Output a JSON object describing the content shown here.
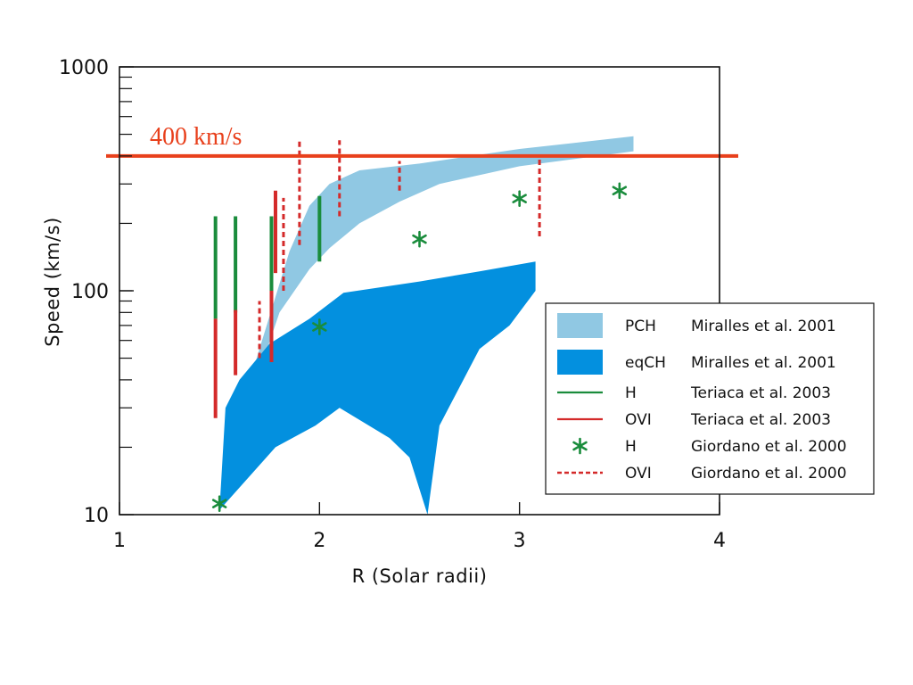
{
  "chart_data": {
    "type": "scatter",
    "x_scale": "linear",
    "y_scale": "log",
    "xlim": [
      1,
      4
    ],
    "ylim": [
      10,
      1000
    ],
    "xlabel": "R (Solar radii)",
    "ylabel": "Speed (km/s)",
    "x_ticks": [
      "1",
      "2",
      "3",
      "4"
    ],
    "y_ticks": [
      "10",
      "100",
      "1000"
    ],
    "reference_line": {
      "y": 400,
      "label": "400 km/s",
      "color": "#e8401c"
    },
    "bands": [
      {
        "label": "PCH",
        "source": "Miralles et al. 2001",
        "color": "#90c8e3",
        "upper": [
          [
            1.5,
            10.5
          ],
          [
            1.6,
            28
          ],
          [
            1.7,
            55
          ],
          [
            1.85,
            150
          ],
          [
            1.95,
            240
          ],
          [
            2.05,
            300
          ],
          [
            2.2,
            345
          ],
          [
            2.5,
            370
          ],
          [
            3.0,
            430
          ],
          [
            3.57,
            490
          ]
        ],
        "lower": [
          [
            3.57,
            420
          ],
          [
            3.0,
            360
          ],
          [
            2.6,
            300
          ],
          [
            2.4,
            250
          ],
          [
            2.2,
            200
          ],
          [
            2.05,
            155
          ],
          [
            1.95,
            125
          ],
          [
            1.8,
            80
          ],
          [
            1.65,
            32
          ],
          [
            1.5,
            10.5
          ]
        ]
      },
      {
        "label": "eqCH",
        "source": "Miralles et al. 2001",
        "color": "#0390df",
        "upper": [
          [
            1.53,
            30
          ],
          [
            1.6,
            40
          ],
          [
            1.75,
            58
          ],
          [
            1.95,
            75
          ],
          [
            2.12,
            98
          ],
          [
            2.5,
            110
          ],
          [
            2.8,
            122
          ],
          [
            3.08,
            135
          ]
        ],
        "lower": [
          [
            3.08,
            100
          ],
          [
            2.95,
            70
          ],
          [
            2.8,
            55
          ],
          [
            2.6,
            25
          ],
          [
            2.54,
            10
          ],
          [
            2.45,
            18
          ],
          [
            2.35,
            22
          ],
          [
            2.1,
            30
          ],
          [
            1.98,
            25
          ],
          [
            1.78,
            20
          ],
          [
            1.5,
            10.5
          ]
        ]
      }
    ],
    "errorbars": [
      {
        "series": "H",
        "source": "Teriaca et al. 2003",
        "color": "#1a8c3c",
        "style": "solid",
        "bars": [
          {
            "x": 1.48,
            "low": 75,
            "high": 215
          },
          {
            "x": 1.58,
            "low": 80,
            "high": 215
          },
          {
            "x": 1.76,
            "low": 100,
            "high": 215
          },
          {
            "x": 2.0,
            "low": 135,
            "high": 265
          }
        ]
      },
      {
        "series": "OVI",
        "source": "Teriaca et al. 2003",
        "color": "#d42a2a",
        "style": "solid",
        "bars": [
          {
            "x": 1.48,
            "low": 27,
            "high": 75
          },
          {
            "x": 1.58,
            "low": 42,
            "high": 82
          },
          {
            "x": 1.76,
            "low": 48,
            "high": 100
          },
          {
            "x": 1.78,
            "low": 120,
            "high": 280
          }
        ]
      },
      {
        "series": "OVI",
        "source": "Giordano et al. 2000",
        "color": "#d42a2a",
        "style": "dashed",
        "bars": [
          {
            "x": 1.7,
            "low": 50,
            "high": 90
          },
          {
            "x": 1.82,
            "low": 100,
            "high": 260
          },
          {
            "x": 1.9,
            "low": 160,
            "high": 480
          },
          {
            "x": 2.1,
            "low": 215,
            "high": 470
          },
          {
            "x": 2.4,
            "low": 280,
            "high": 380
          },
          {
            "x": 3.1,
            "low": 175,
            "high": 385
          }
        ]
      }
    ],
    "points": {
      "series": "H",
      "source": "Giordano et al. 2000",
      "color": "#1a8c3c",
      "marker": "*",
      "data": [
        [
          1.5,
          11.2
        ],
        [
          2.0,
          69
        ],
        [
          2.5,
          170
        ],
        [
          3.0,
          258
        ],
        [
          3.5,
          280
        ]
      ]
    },
    "legend": {
      "position": "lower-right",
      "items": [
        {
          "symbol": "box",
          "color": "#90c8e3",
          "series": "PCH",
          "source": "Miralles et al. 2001"
        },
        {
          "symbol": "box",
          "color": "#0390df",
          "series": "eqCH",
          "source": "Miralles et al. 2001"
        },
        {
          "symbol": "line",
          "color": "#1a8c3c",
          "series": "H",
          "source": "Teriaca et al. 2003"
        },
        {
          "symbol": "line",
          "color": "#d42a2a",
          "series": "OVI",
          "source": "Teriaca et al. 2003"
        },
        {
          "symbol": "star",
          "color": "#1a8c3c",
          "series": "H",
          "source": "Giordano et al. 2000"
        },
        {
          "symbol": "dash",
          "color": "#d42a2a",
          "series": "OVI",
          "source": "Giordano et al. 2000"
        }
      ]
    }
  }
}
